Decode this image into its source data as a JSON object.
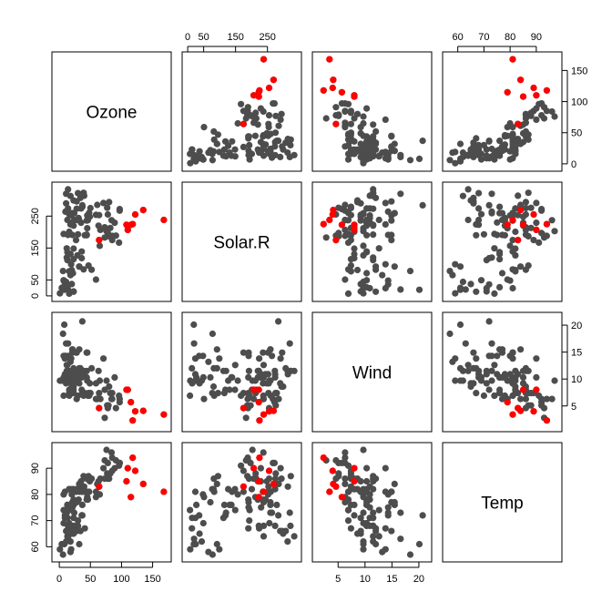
{
  "chart_data": {
    "type": "scatter",
    "variables": [
      "Ozone",
      "Solar.R",
      "Wind",
      "Temp"
    ],
    "ranges": {
      "Ozone": [
        -6,
        174
      ],
      "Solar.R": [
        -6,
        345
      ],
      "Wind": [
        0.9,
        21.7
      ],
      "Temp": [
        55.6,
        98.4
      ]
    },
    "ticks": {
      "Ozone": [
        "0",
        "50",
        "100",
        "150"
      ],
      "Solar.R": [
        "0",
        "50",
        "150",
        "250"
      ],
      "Wind": [
        "5",
        "10",
        "15",
        "20"
      ],
      "Temp": [
        "60",
        "70",
        "80",
        "90"
      ]
    },
    "tick_values": {
      "Ozone": [
        0,
        50,
        100,
        150
      ],
      "Solar.R": [
        0,
        50,
        150,
        250
      ],
      "Wind": [
        5,
        10,
        15,
        20
      ],
      "Temp": [
        60,
        70,
        80,
        90
      ]
    },
    "colors": {
      "normal": "#4d4d4d",
      "highlight": "#ff0000"
    },
    "observations": [
      [
        41,
        190,
        7.4,
        67
      ],
      [
        36,
        118,
        8.0,
        72
      ],
      [
        12,
        149,
        12.6,
        74
      ],
      [
        18,
        313,
        11.5,
        62
      ],
      [
        28,
        296,
        14.9,
        66
      ],
      [
        23,
        299,
        8.6,
        65
      ],
      [
        19,
        99,
        13.8,
        59
      ],
      [
        8,
        19,
        20.1,
        61
      ],
      [
        7,
        194,
        6.9,
        74
      ],
      [
        16,
        256,
        9.7,
        69
      ],
      [
        11,
        290,
        9.2,
        66
      ],
      [
        14,
        274,
        10.9,
        68
      ],
      [
        18,
        65,
        13.2,
        58
      ],
      [
        14,
        334,
        11.5,
        64
      ],
      [
        34,
        307,
        12.0,
        66
      ],
      [
        6,
        78,
        18.4,
        57
      ],
      [
        30,
        322,
        11.5,
        68
      ],
      [
        11,
        44,
        9.7,
        62
      ],
      [
        1,
        8,
        9.7,
        59
      ],
      [
        11,
        320,
        16.6,
        73
      ],
      [
        4,
        25,
        9.7,
        61
      ],
      [
        32,
        92,
        12.0,
        61
      ],
      [
        23,
        13,
        12.0,
        67
      ],
      [
        45,
        252,
        14.9,
        81
      ],
      [
        115,
        223,
        5.7,
        79
      ],
      [
        37,
        279,
        7.4,
        76
      ],
      [
        29,
        127,
        9.7,
        82
      ],
      [
        71,
        291,
        13.8,
        90
      ],
      [
        39,
        323,
        11.5,
        87
      ],
      [
        23,
        148,
        8.0,
        82
      ],
      [
        21,
        191,
        14.9,
        77
      ],
      [
        37,
        284,
        20.7,
        72
      ],
      [
        20,
        37,
        9.2,
        65
      ],
      [
        12,
        120,
        11.5,
        73
      ],
      [
        13,
        137,
        10.3,
        76
      ],
      [
        135,
        269,
        4.1,
        84
      ],
      [
        49,
        248,
        9.2,
        85
      ],
      [
        32,
        236,
        9.2,
        81
      ],
      [
        64,
        175,
        4.6,
        83
      ],
      [
        40,
        314,
        10.9,
        83
      ],
      [
        77,
        276,
        5.1,
        88
      ],
      [
        97,
        267,
        6.3,
        92
      ],
      [
        97,
        272,
        5.7,
        92
      ],
      [
        85,
        175,
        7.4,
        89
      ],
      [
        10,
        264,
        14.3,
        73
      ],
      [
        27,
        175,
        14.9,
        81
      ],
      [
        7,
        48,
        14.3,
        80
      ],
      [
        48,
        260,
        6.9,
        81
      ],
      [
        35,
        274,
        10.3,
        82
      ],
      [
        61,
        285,
        6.3,
        84
      ],
      [
        79,
        187,
        5.1,
        87
      ],
      [
        63,
        220,
        11.5,
        85
      ],
      [
        16,
        7,
        6.9,
        74
      ],
      [
        80,
        294,
        8.6,
        86
      ],
      [
        108,
        223,
        8.0,
        85
      ],
      [
        20,
        81,
        8.6,
        82
      ],
      [
        52,
        82,
        12.0,
        86
      ],
      [
        82,
        213,
        7.4,
        88
      ],
      [
        50,
        275,
        7.4,
        86
      ],
      [
        64,
        253,
        7.4,
        83
      ],
      [
        59,
        254,
        9.2,
        81
      ],
      [
        39,
        83,
        6.9,
        81
      ],
      [
        9,
        24,
        13.8,
        81
      ],
      [
        16,
        77,
        7.4,
        82
      ],
      [
        78,
        255,
        4.6,
        86
      ],
      [
        35,
        229,
        10.3,
        85
      ],
      [
        66,
        207,
        6.3,
        86
      ],
      [
        122,
        255,
        4.0,
        89
      ],
      [
        89,
        229,
        10.3,
        90
      ],
      [
        110,
        207,
        8.0,
        90
      ],
      [
        44,
        192,
        11.5,
        86
      ],
      [
        28,
        273,
        11.5,
        82
      ],
      [
        65,
        157,
        9.7,
        80
      ],
      [
        22,
        71,
        10.3,
        77
      ],
      [
        59,
        51,
        6.3,
        79
      ],
      [
        23,
        115,
        7.4,
        76
      ],
      [
        31,
        244,
        10.9,
        78
      ],
      [
        44,
        190,
        10.3,
        78
      ],
      [
        21,
        259,
        15.5,
        77
      ],
      [
        9,
        36,
        14.3,
        72
      ],
      [
        45,
        212,
        9.7,
        79
      ],
      [
        168,
        238,
        3.4,
        81
      ],
      [
        73,
        215,
        8.0,
        86
      ],
      [
        76,
        203,
        9.7,
        97
      ],
      [
        118,
        225,
        2.3,
        94
      ],
      [
        84,
        237,
        6.3,
        96
      ],
      [
        85,
        188,
        6.3,
        94
      ],
      [
        96,
        167,
        6.9,
        91
      ],
      [
        78,
        197,
        5.1,
        92
      ],
      [
        73,
        183,
        2.8,
        93
      ],
      [
        91,
        189,
        4.6,
        93
      ],
      [
        47,
        95,
        7.4,
        87
      ],
      [
        32,
        92,
        15.5,
        84
      ],
      [
        20,
        252,
        10.9,
        80
      ],
      [
        23,
        220,
        10.3,
        78
      ],
      [
        21,
        230,
        10.9,
        75
      ],
      [
        24,
        259,
        9.7,
        73
      ],
      [
        44,
        236,
        14.9,
        81
      ],
      [
        21,
        259,
        15.5,
        76
      ],
      [
        28,
        238,
        6.3,
        77
      ],
      [
        9,
        24,
        10.9,
        71
      ],
      [
        13,
        112,
        11.5,
        71
      ],
      [
        46,
        237,
        6.9,
        78
      ],
      [
        18,
        224,
        13.8,
        67
      ],
      [
        13,
        27,
        10.3,
        76
      ],
      [
        24,
        238,
        10.3,
        68
      ],
      [
        16,
        201,
        8.0,
        82
      ],
      [
        13,
        238,
        12.6,
        64
      ],
      [
        23,
        14,
        9.2,
        71
      ],
      [
        36,
        139,
        10.3,
        81
      ],
      [
        7,
        49,
        10.3,
        69
      ],
      [
        14,
        20,
        16.6,
        63
      ],
      [
        30,
        193,
        6.9,
        70
      ],
      [
        14,
        191,
        14.3,
        75
      ],
      [
        18,
        131,
        8.0,
        76
      ],
      [
        20,
        223,
        11.5,
        68
      ]
    ],
    "highlight_observations": [
      [
        168,
        238,
        3.4,
        81
      ],
      [
        135,
        269,
        4.1,
        84
      ],
      [
        122,
        255,
        4.0,
        89
      ],
      [
        118,
        225,
        2.3,
        94
      ],
      [
        115,
        223,
        5.7,
        79
      ],
      [
        108,
        223,
        8.0,
        85
      ],
      [
        110,
        207,
        8.0,
        90
      ],
      [
        64,
        175,
        4.6,
        83
      ]
    ]
  }
}
